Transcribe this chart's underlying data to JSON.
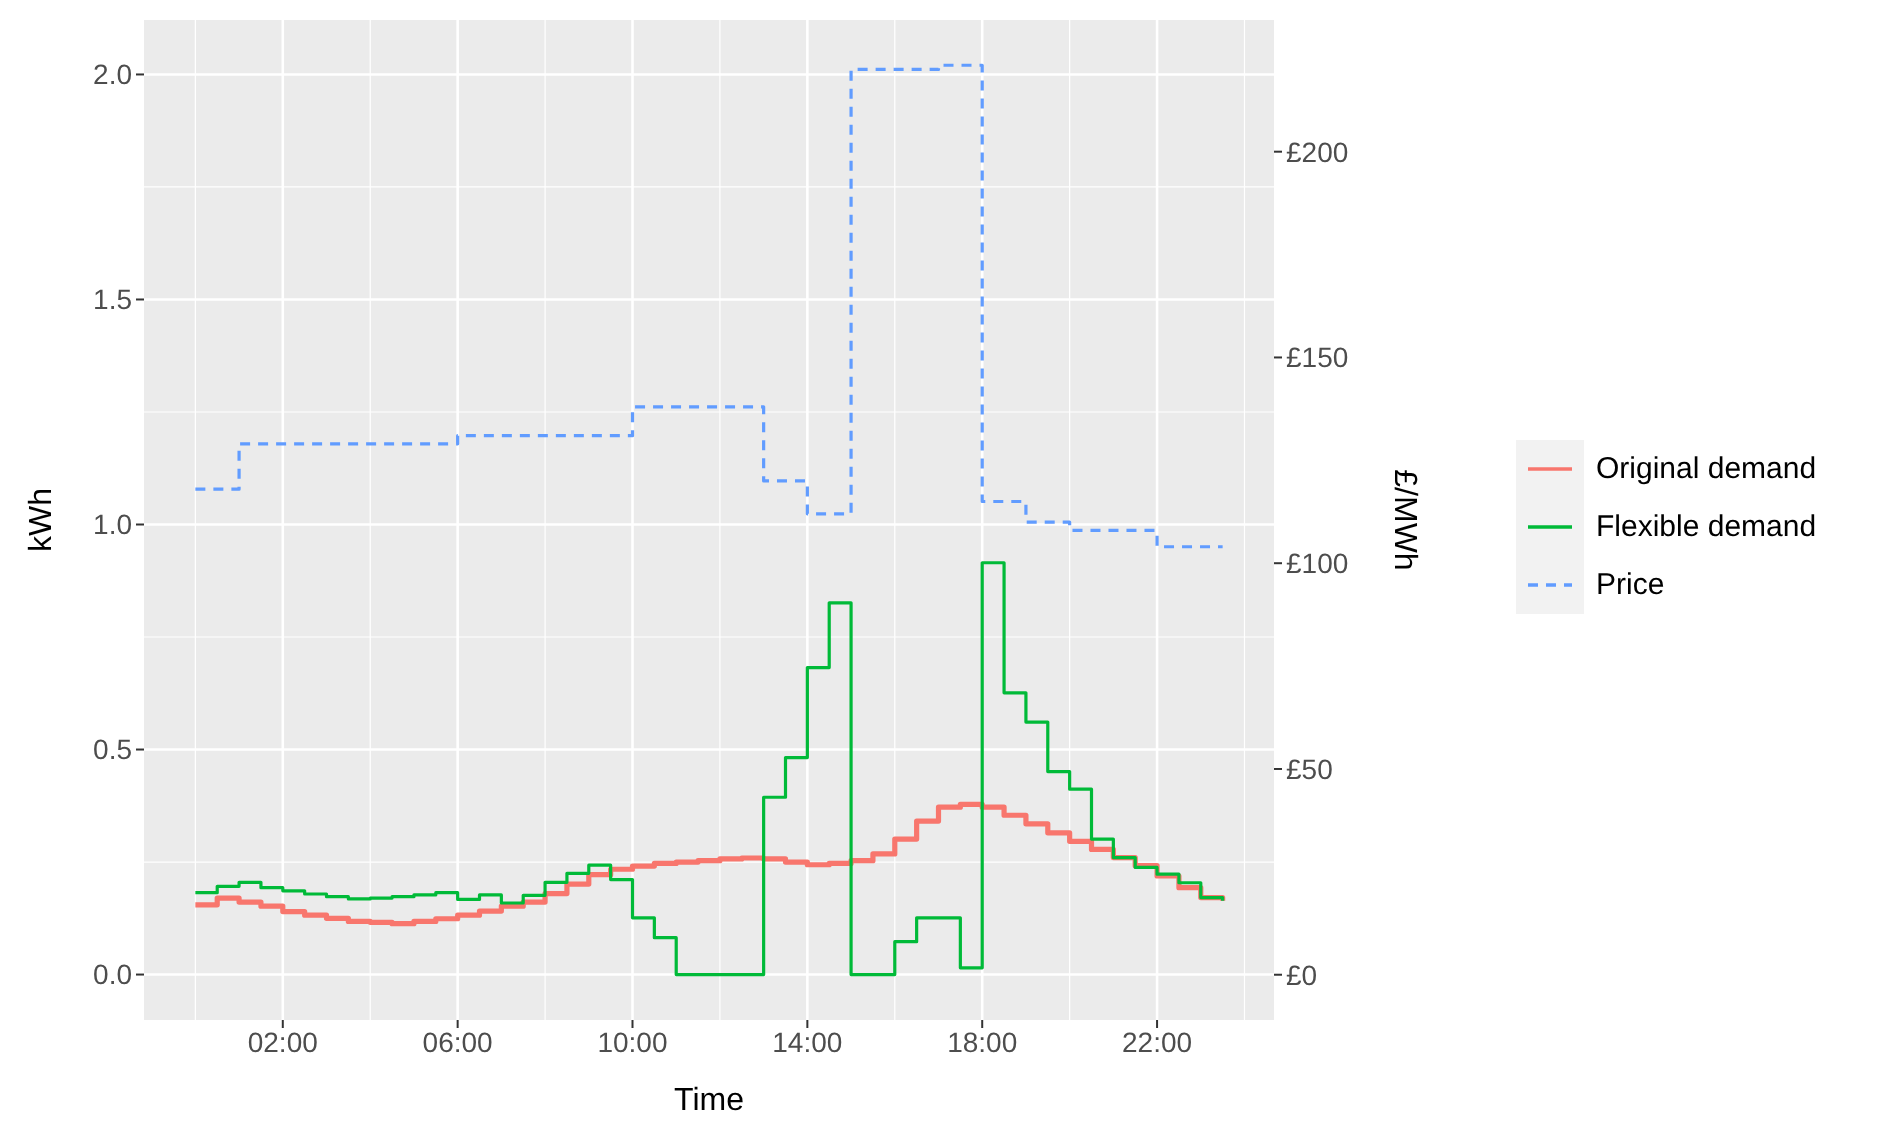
{
  "chart_data": {
    "type": "step",
    "xlabel": "Time",
    "ylabel": "kWh",
    "y2label": "£/MWh",
    "x": [
      0,
      0.5,
      1,
      1.5,
      2,
      2.5,
      3,
      3.5,
      4,
      4.5,
      5,
      5.5,
      6,
      6.5,
      7,
      7.5,
      8,
      8.5,
      9,
      9.5,
      10,
      10.5,
      11,
      11.5,
      12,
      12.5,
      13,
      13.5,
      14,
      14.5,
      15,
      15.5,
      16,
      16.5,
      17,
      17.5,
      18,
      18.5,
      19,
      19.5,
      20,
      20.5,
      21,
      21.5,
      22,
      22.5,
      23,
      23.5
    ],
    "series": [
      {
        "name": "Original demand",
        "color": "#f8766d",
        "values": [
          0.155,
          0.17,
          0.161,
          0.152,
          0.14,
          0.132,
          0.125,
          0.118,
          0.116,
          0.113,
          0.118,
          0.124,
          0.132,
          0.141,
          0.152,
          0.161,
          0.18,
          0.201,
          0.222,
          0.234,
          0.241,
          0.247,
          0.25,
          0.253,
          0.257,
          0.259,
          0.257,
          0.25,
          0.244,
          0.247,
          0.253,
          0.268,
          0.301,
          0.341,
          0.372,
          0.378,
          0.372,
          0.354,
          0.335,
          0.315,
          0.296,
          0.278,
          0.26,
          0.242,
          0.219,
          0.193,
          0.171,
          0.164
        ]
      },
      {
        "name": "Flexible demand",
        "color": "#00ba38",
        "values": [
          0.182,
          0.196,
          0.205,
          0.193,
          0.186,
          0.179,
          0.173,
          0.168,
          0.17,
          0.173,
          0.177,
          0.182,
          0.167,
          0.177,
          0.159,
          0.176,
          0.205,
          0.225,
          0.243,
          0.211,
          0.126,
          0.082,
          0,
          0,
          0,
          0,
          0.394,
          0.482,
          0.682,
          0.826,
          0,
          0,
          0.073,
          0.126,
          0.126,
          0.015,
          0.915,
          0.626,
          0.561,
          0.451,
          0.412,
          0.301,
          0.26,
          0.238,
          0.223,
          0.204,
          0.171,
          0.164
        ]
      },
      {
        "name": "Price",
        "color": "#619cff",
        "axis": "y2",
        "line_style": "dashed",
        "values": [
          118,
          118,
          129,
          129,
          129,
          129,
          129,
          129,
          129,
          129,
          129,
          129,
          131,
          131,
          131,
          131,
          131,
          131,
          131,
          131,
          138,
          138,
          138,
          138,
          138,
          138,
          120,
          120,
          112,
          112,
          220,
          220,
          220,
          220,
          221,
          221,
          115,
          115,
          110,
          110,
          108,
          108,
          108,
          108,
          104,
          104,
          104,
          104
        ]
      }
    ],
    "xlim": [
      -1.175,
      24.675
    ],
    "xticks": [
      {
        "value": 2,
        "label": "02:00"
      },
      {
        "value": 6,
        "label": "06:00"
      },
      {
        "value": 10,
        "label": "10:00"
      },
      {
        "value": 14,
        "label": "14:00"
      },
      {
        "value": 18,
        "label": "18:00"
      },
      {
        "value": 22,
        "label": "22:00"
      }
    ],
    "ylim": [
      -0.101,
      2.121
    ],
    "yticks": [
      {
        "value": 0,
        "label": "0.0"
      },
      {
        "value": 0.5,
        "label": "0.5"
      },
      {
        "value": 1,
        "label": "1.0"
      },
      {
        "value": 1.5,
        "label": "1.5"
      },
      {
        "value": 2,
        "label": "2.0"
      }
    ],
    "y2lim": [
      -11,
      232
    ],
    "y2ticks": [
      {
        "value": 0,
        "label": "£0"
      },
      {
        "value": 50,
        "label": "£50"
      },
      {
        "value": 100,
        "label": "£100"
      },
      {
        "value": 150,
        "label": "£150"
      },
      {
        "value": 200,
        "label": "£200"
      }
    ],
    "grid": true,
    "legend": "right"
  }
}
